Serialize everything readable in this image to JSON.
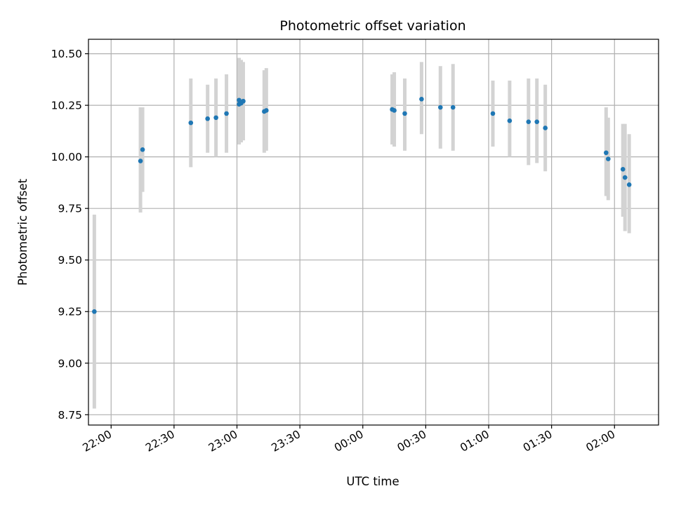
{
  "chart_data": {
    "type": "scatter",
    "title": "Photometric offset variation",
    "xlabel": "UTC time",
    "ylabel": "Photometric offset",
    "x_axis_kind": "time",
    "xlim": [
      "21:52",
      "02:21"
    ],
    "ylim": [
      8.7,
      10.57
    ],
    "xticks": [
      "22:00",
      "22:30",
      "23:00",
      "23:30",
      "00:00",
      "00:30",
      "01:00",
      "01:30",
      "02:00"
    ],
    "yticks": [
      "8.75",
      "9.00",
      "9.25",
      "9.50",
      "9.75",
      "10.00",
      "10.25",
      "10.50"
    ],
    "grid": true,
    "marker_color": "#1f77b4",
    "errorbar_color": "#d3d3d3",
    "points": [
      {
        "x": "21:52",
        "y": 9.25,
        "ylow": 8.78,
        "yhigh": 9.72
      },
      {
        "x": "22:14",
        "y": 9.98,
        "ylow": 9.73,
        "yhigh": 10.24
      },
      {
        "x": "22:15",
        "y": 10.035,
        "ylow": 9.83,
        "yhigh": 10.24
      },
      {
        "x": "22:38",
        "y": 10.165,
        "ylow": 9.95,
        "yhigh": 10.38
      },
      {
        "x": "22:46",
        "y": 10.185,
        "ylow": 10.02,
        "yhigh": 10.35
      },
      {
        "x": "22:50",
        "y": 10.19,
        "ylow": 10.0,
        "yhigh": 10.38
      },
      {
        "x": "22:55",
        "y": 10.21,
        "ylow": 10.02,
        "yhigh": 10.4
      },
      {
        "x": "23:01",
        "y": 10.255,
        "ylow": 10.06,
        "yhigh": 10.46
      },
      {
        "x": "23:01",
        "y": 10.275,
        "ylow": 10.07,
        "yhigh": 10.48
      },
      {
        "x": "23:02",
        "y": 10.26,
        "ylow": 10.07,
        "yhigh": 10.47
      },
      {
        "x": "23:03",
        "y": 10.27,
        "ylow": 10.08,
        "yhigh": 10.46
      },
      {
        "x": "23:13",
        "y": 10.22,
        "ylow": 10.02,
        "yhigh": 10.42
      },
      {
        "x": "23:14",
        "y": 10.225,
        "ylow": 10.03,
        "yhigh": 10.43
      },
      {
        "x": "00:14",
        "y": 10.23,
        "ylow": 10.06,
        "yhigh": 10.4
      },
      {
        "x": "00:15",
        "y": 10.225,
        "ylow": 10.05,
        "yhigh": 10.41
      },
      {
        "x": "00:20",
        "y": 10.21,
        "ylow": 10.03,
        "yhigh": 10.38
      },
      {
        "x": "00:28",
        "y": 10.28,
        "ylow": 10.11,
        "yhigh": 10.46
      },
      {
        "x": "00:37",
        "y": 10.24,
        "ylow": 10.04,
        "yhigh": 10.44
      },
      {
        "x": "00:43",
        "y": 10.24,
        "ylow": 10.03,
        "yhigh": 10.45
      },
      {
        "x": "01:02",
        "y": 10.21,
        "ylow": 10.05,
        "yhigh": 10.37
      },
      {
        "x": "01:10",
        "y": 10.175,
        "ylow": 10.0,
        "yhigh": 10.37
      },
      {
        "x": "01:19",
        "y": 10.17,
        "ylow": 9.96,
        "yhigh": 10.38
      },
      {
        "x": "01:23",
        "y": 10.17,
        "ylow": 9.97,
        "yhigh": 10.38
      },
      {
        "x": "01:27",
        "y": 10.14,
        "ylow": 9.93,
        "yhigh": 10.35
      },
      {
        "x": "01:56",
        "y": 10.02,
        "ylow": 9.81,
        "yhigh": 10.24
      },
      {
        "x": "01:57",
        "y": 9.99,
        "ylow": 9.79,
        "yhigh": 10.19
      },
      {
        "x": "02:04",
        "y": 9.94,
        "ylow": 9.71,
        "yhigh": 10.16
      },
      {
        "x": "02:05",
        "y": 9.9,
        "ylow": 9.64,
        "yhigh": 10.16
      },
      {
        "x": "02:07",
        "y": 9.865,
        "ylow": 9.63,
        "yhigh": 10.11
      }
    ]
  }
}
